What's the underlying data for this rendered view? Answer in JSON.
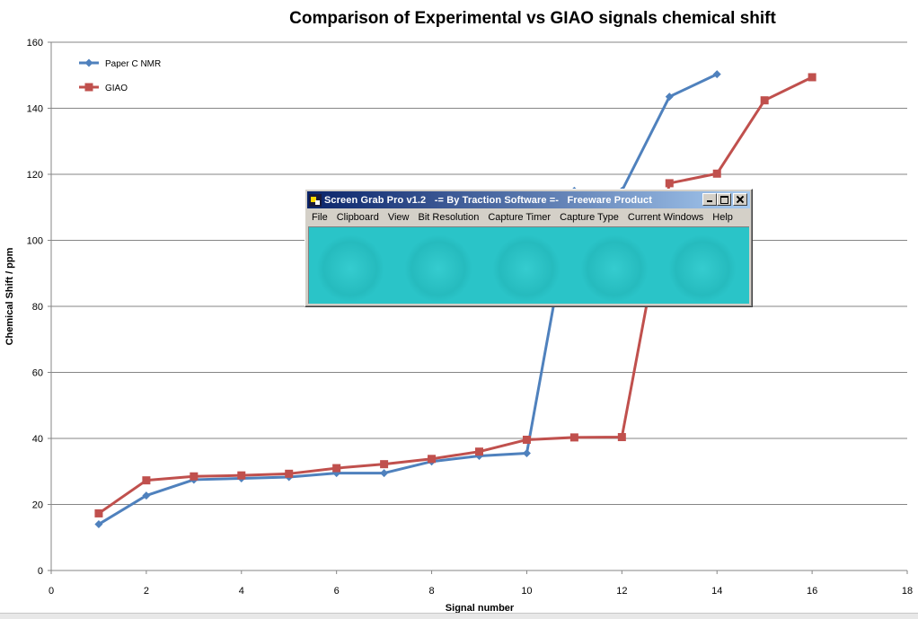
{
  "chart_data": {
    "type": "line",
    "title": "Comparison of Experimental vs GIAO signals chemical shift",
    "xlabel": "Signal number",
    "ylabel": "Chemical Shift  / ppm",
    "xlim": [
      0,
      18
    ],
    "ylim": [
      0,
      160
    ],
    "x_ticks": [
      "0",
      "2",
      "4",
      "6",
      "8",
      "10",
      "12",
      "14",
      "16",
      "18"
    ],
    "y_ticks": [
      "0",
      "20",
      "40",
      "60",
      "80",
      "100",
      "120",
      "140",
      "160"
    ],
    "grid": "horizontal",
    "legend": "top-left",
    "series": [
      {
        "name": "Paper C NMR",
        "color": "#4f81bd",
        "marker": "diamond",
        "x": [
          1,
          2,
          3,
          4,
          5,
          6,
          7,
          8,
          9,
          10,
          11,
          12,
          13,
          14
        ],
        "y": [
          14,
          22.7,
          27.5,
          27.9,
          28.3,
          29.5,
          29.5,
          33,
          34.7,
          35.5,
          115,
          115,
          143.5,
          150.3
        ]
      },
      {
        "name": "GIAO",
        "color": "#c0504d",
        "marker": "square",
        "x": [
          1,
          2,
          3,
          4,
          5,
          6,
          7,
          8,
          9,
          10,
          11,
          12,
          13,
          14,
          15,
          16
        ],
        "y": [
          17.3,
          27.3,
          28.5,
          28.8,
          29.3,
          31,
          32.2,
          33.8,
          36,
          39.6,
          40.3,
          40.4,
          117.3,
          120.2,
          142.4,
          149.4
        ]
      }
    ]
  },
  "app_window": {
    "icon": "screen-grab-camera-icon",
    "title": "Screen Grab Pro v1.2   -= By Traction Software =-   Freeware Product",
    "menu": [
      "File",
      "Clipboard",
      "View",
      "Bit Resolution",
      "Capture Timer",
      "Capture Type",
      "Current Windows",
      "Help"
    ],
    "buttons": [
      "minimize-icon",
      "maximize-icon",
      "close-icon"
    ],
    "client_color": "#2ac4c8"
  }
}
